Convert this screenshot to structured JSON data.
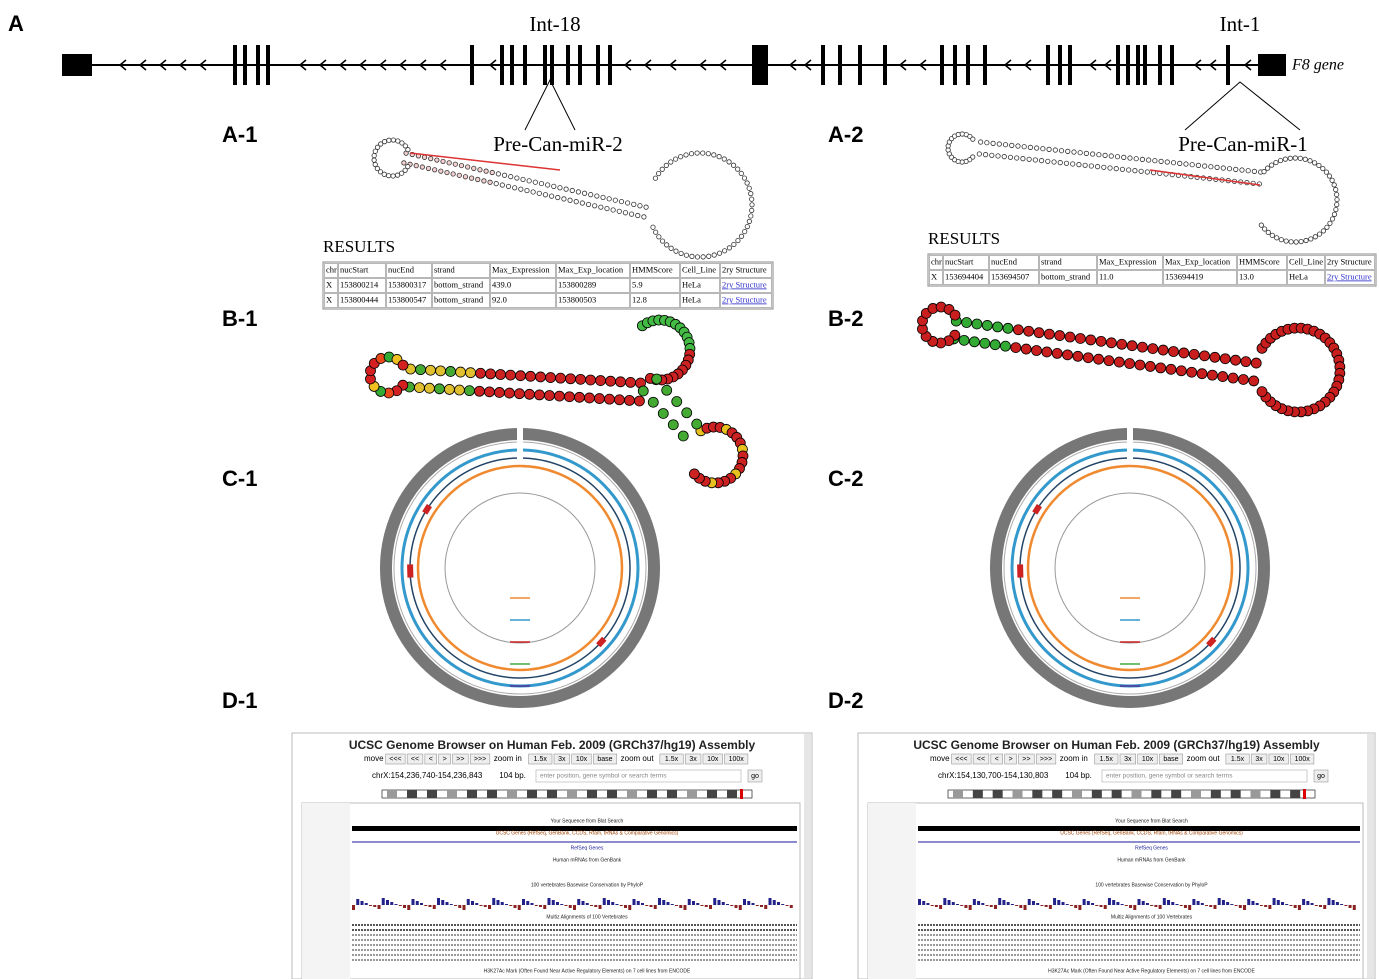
{
  "figure_label": "A",
  "gene": {
    "name": "F8 gene",
    "intron_labels": [
      "Int-18",
      "Int-1"
    ],
    "precursors": [
      "Pre-Can-miR-2",
      "Pre-Can-miR-1"
    ]
  },
  "panel_labels": [
    "A-1",
    "A-2",
    "B-1",
    "B-2",
    "C-1",
    "C-2",
    "D-1",
    "D-2"
  ],
  "results": [
    {
      "title": "RESULTS",
      "header": [
        "chr",
        "nucStart",
        "nucEnd",
        "strand",
        "Max_Expression",
        "Max_Exp_location",
        "HMMScore",
        "Cell_Line",
        "2ry Structure"
      ],
      "rows": [
        [
          "X",
          "153800214",
          "153800317",
          "bottom_strand",
          "439.0",
          "153800289",
          "5.9",
          "HeLa",
          "2ry Structure"
        ],
        [
          "X",
          "153800444",
          "153800547",
          "bottom_strand",
          "92.0",
          "153800503",
          "12.8",
          "HeLa",
          "2ry Structure"
        ]
      ]
    },
    {
      "title": "RESULTS",
      "header": [
        "chr",
        "nucStart",
        "nucEnd",
        "strand",
        "Max_Expression",
        "Max_Exp_location",
        "HMMScore",
        "Cell_Line",
        "2ry Structure"
      ],
      "rows": [
        [
          "X",
          "153694404",
          "153694507",
          "bottom_strand",
          "11.0",
          "153694419",
          "13.0",
          "HeLa",
          "2ry Structure"
        ]
      ]
    }
  ],
  "browsers": [
    {
      "title": "UCSC Genome Browser on Human Feb. 2009 (GRCh37/hg19) Assembly",
      "move": "move",
      "nav": [
        "<<<",
        "<<",
        "<",
        ">",
        ">>",
        ">>>"
      ],
      "zoom_in": "zoom in",
      "zoom_in_buttons": [
        "1.5x",
        "3x",
        "10x",
        "base"
      ],
      "zoom_out": "zoom out",
      "zoom_out_buttons": [
        "1.5x",
        "3x",
        "10x",
        "100x"
      ],
      "position": "chrX:154,236,740-154,236,843",
      "size": "104 bp.",
      "search": "enter position, gene symbol or search terms",
      "go": "go",
      "tracks": [
        "Your Sequence from Blat Search",
        "UCSC Genes (RefSeq, GenBank, CCDS, Rfam, tRNAs & Comparative Genomics)",
        "RefSeq Genes",
        "Human mRNAs from GenBank",
        "100 vertebrates Basewise Conservation by PhyloP",
        "Multiz Alignments of 100 Vertebrates",
        "H3K27Ac Mark (Often Found Near Active Regulatory Elements) on 7 cell lines from ENCODE"
      ]
    },
    {
      "title": "UCSC Genome Browser on Human Feb. 2009 (GRCh37/hg19) Assembly",
      "move": "move",
      "nav": [
        "<<<",
        "<<",
        "<",
        ">",
        ">>",
        ">>>"
      ],
      "zoom_in": "zoom in",
      "zoom_in_buttons": [
        "1.5x",
        "3x",
        "10x",
        "base"
      ],
      "zoom_out": "zoom out",
      "zoom_out_buttons": [
        "1.5x",
        "3x",
        "10x",
        "100x"
      ],
      "position": "chrX:154,130,700-154,130,803",
      "size": "104 bp.",
      "search": "enter position, gene symbol or search terms",
      "go": "go",
      "tracks": [
        "Your Sequence from Blat Search",
        "UCSC Genes (RefSeq, GenBank, CCDS, Rfam, tRNAs & Comparative Genomics)",
        "RefSeq Genes",
        "Human mRNAs from GenBank",
        "100 vertebrates Basewise Conservation by PhyloP",
        "Multiz Alignments of 100 Vertebrates",
        "H3K27Ac Mark (Often Found Near Active Regulatory Elements) on 7 cell lines from ENCODE"
      ]
    }
  ]
}
